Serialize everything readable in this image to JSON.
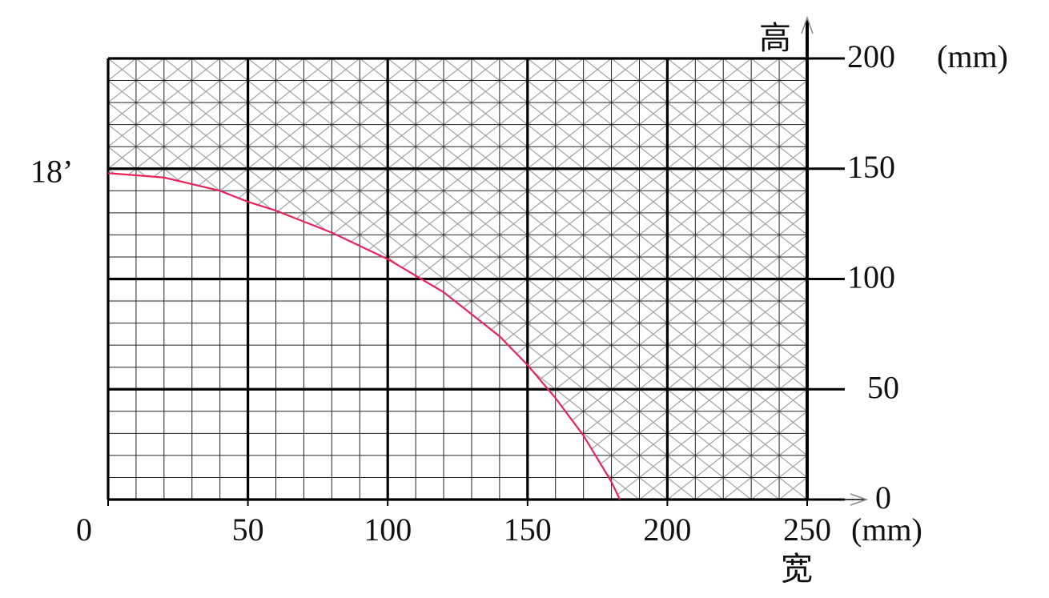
{
  "chart_data": {
    "type": "line",
    "x_label": "宽",
    "y_label": "高",
    "x_unit": "(mm)",
    "y_unit": "(mm)",
    "x": [
      0,
      20,
      40,
      50,
      60,
      80,
      100,
      120,
      140,
      150,
      160,
      170,
      180,
      183
    ],
    "series": [
      {
        "name": "18’",
        "color": "#e8245a",
        "values": [
          148,
          146,
          140,
          135,
          131,
          121,
          109,
          94,
          74,
          61,
          46,
          29,
          8,
          0
        ]
      }
    ],
    "xlim": [
      0,
      250
    ],
    "xticks": [
      0,
      50,
      100,
      150,
      200,
      250
    ],
    "ylim": [
      0,
      200
    ],
    "yticks": [
      0,
      50,
      100,
      150,
      200
    ],
    "grid": true,
    "hatch_color": "#9aa0a0"
  }
}
